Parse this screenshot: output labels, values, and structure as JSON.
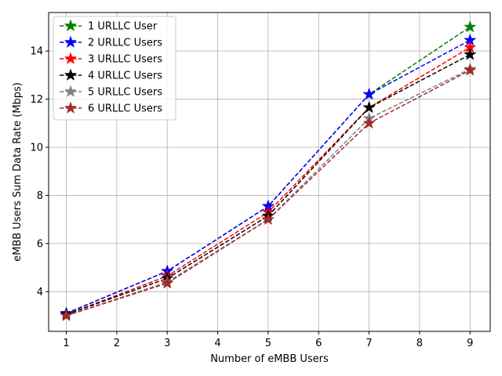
{
  "chart_data": {
    "type": "line",
    "title": "",
    "xlabel": "Number of eMBB Users",
    "ylabel": "eMBB Users Sum Data Rate (Mbps)",
    "x": [
      1,
      3,
      5,
      7,
      9
    ],
    "xlim": [
      0.65,
      9.4
    ],
    "ylim": [
      2.35,
      15.6
    ],
    "xticks": [
      1,
      2,
      3,
      4,
      5,
      6,
      7,
      8,
      9
    ],
    "yticks": [
      4,
      6,
      8,
      10,
      12,
      14
    ],
    "grid": true,
    "legend_position": "top-left",
    "series": [
      {
        "name": "1 URLLC User",
        "color": "#008000",
        "values": [
          3.1,
          4.85,
          7.55,
          12.2,
          15.0
        ]
      },
      {
        "name": "2 URLLC Users",
        "color": "#0000ff",
        "values": [
          3.1,
          4.85,
          7.55,
          12.2,
          14.45
        ]
      },
      {
        "name": "3 URLLC Users",
        "color": "#ff0000",
        "values": [
          3.05,
          4.65,
          7.3,
          11.65,
          14.15
        ]
      },
      {
        "name": "4 URLLC Users",
        "color": "#000000",
        "values": [
          3.05,
          4.55,
          7.15,
          11.65,
          13.85
        ]
      },
      {
        "name": "5 URLLC Users",
        "color": "#808080",
        "values": [
          3.0,
          4.4,
          7.0,
          11.2,
          13.25
        ]
      },
      {
        "name": "6 URLLC Users",
        "color": "#a52a2a",
        "values": [
          3.0,
          4.35,
          7.0,
          11.0,
          13.2
        ]
      }
    ]
  }
}
